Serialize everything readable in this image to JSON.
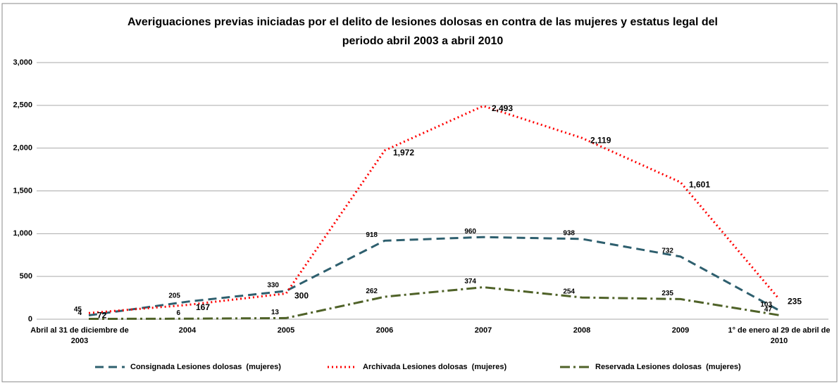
{
  "chart_data": {
    "type": "line",
    "title": "Averiguaciones previas iniciadas por el delito de lesiones dolosas en contra de las mujeres y estatus legal del periodo abril 2003 a abril 2010",
    "categories": [
      "Abril al 31 de diciembre de 2003",
      "2004",
      "2005",
      "2006",
      "2007",
      "2008",
      "2009",
      "1° de enero al 29 de abril de 2010"
    ],
    "series": [
      {
        "name": "Consignada Lesiones dolosas  (mujeres)",
        "color": "#2e5f6e",
        "dash": "12 7",
        "values": [
          45,
          205,
          330,
          918,
          960,
          938,
          732,
          103
        ]
      },
      {
        "name": "Archivada Lesiones dolosas  (mujeres)",
        "color": "#ff0000",
        "dash": "2 4",
        "values": [
          72,
          167,
          300,
          1972,
          2493,
          2119,
          1601,
          235
        ],
        "value_labels": [
          "72",
          "167",
          "300",
          "1,972",
          "2,493",
          "2,119",
          "1,601",
          "235"
        ]
      },
      {
        "name": "Reservada Lesiones dolosas  (mujeres)",
        "color": "#4f6228",
        "dash": "14 5 3 5",
        "values": [
          4,
          6,
          13,
          262,
          374,
          254,
          235,
          47
        ]
      }
    ],
    "ylim": [
      0,
      3000
    ],
    "yticks": [
      0,
      500,
      {
        "value": 1000,
        "label": "1,000"
      },
      {
        "value": 1500,
        "label": "1,500"
      },
      {
        "value": 2000,
        "label": "2,000"
      },
      {
        "value": 2500,
        "label": "2,500"
      },
      {
        "value": 3000,
        "label": "3,000"
      }
    ],
    "grid": true,
    "legend": "bottom"
  }
}
